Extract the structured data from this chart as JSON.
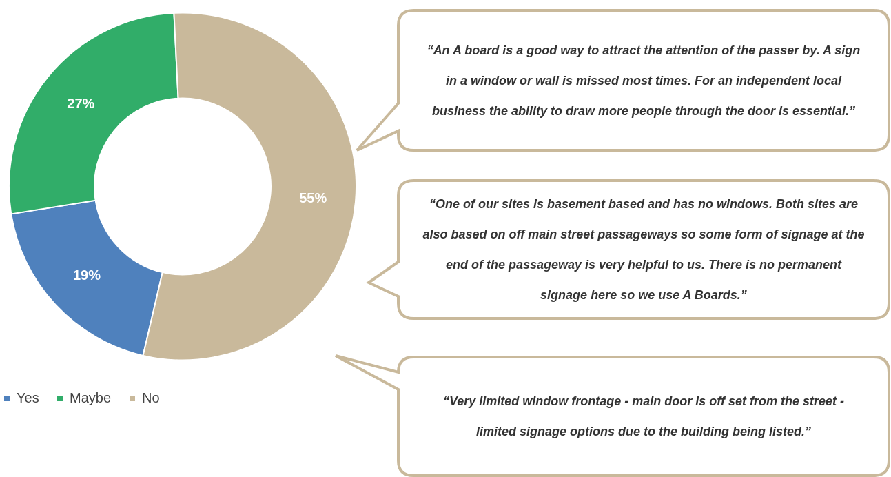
{
  "chart_data": {
    "type": "donut",
    "categories": [
      "Yes",
      "Maybe",
      "No"
    ],
    "values": [
      19,
      27,
      55
    ],
    "colors": [
      "#4f81bd",
      "#31ad69",
      "#c9b99b"
    ],
    "value_labels": [
      "19%",
      "27%",
      "55%"
    ],
    "legend": "bottom",
    "annotations": [
      "“An A board is a good way to attract the attention of the passer by. A sign in a window or wall is missed most times. For an independent local business the ability to draw more people through the door is essential.”",
      "“One of our sites is basement based and has no windows. Both sites are also based on off main street passageways so some form of signage at the end of the passageway is very helpful to us. There is no permanent signage here so we use A Boards.”",
      "“Very limited window frontage - main door is off set from the street - limited signage options due to the building being listed.”"
    ]
  }
}
